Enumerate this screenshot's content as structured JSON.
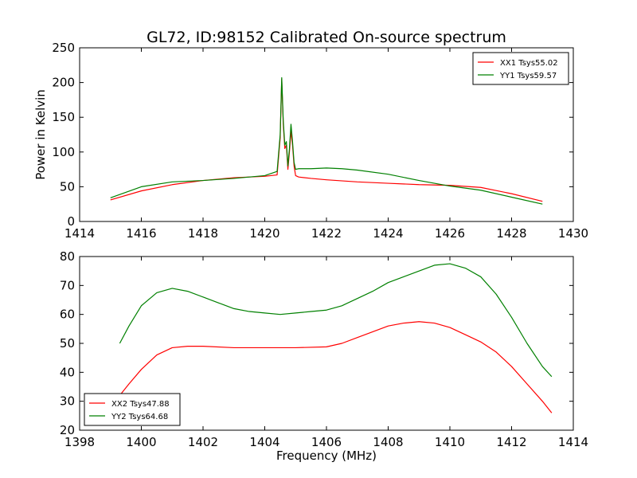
{
  "figure": {
    "title": "GL72, ID:98152 Calibrated On-source spectrum"
  },
  "colors": {
    "xx": "#ff0000",
    "yy": "#008000"
  },
  "chart_data": [
    {
      "type": "line",
      "title": "GL72, ID:98152 Calibrated On-source spectrum",
      "xlabel": "",
      "ylabel": "Power in Kelvin",
      "xlim": [
        1414,
        1430
      ],
      "ylim": [
        0,
        250
      ],
      "xticks": [
        "1414",
        "1416",
        "1418",
        "1420",
        "1422",
        "1424",
        "1426",
        "1428",
        "1430"
      ],
      "yticks": [
        "0",
        "50",
        "100",
        "150",
        "200",
        "250"
      ],
      "legend": "top-right",
      "grid": false,
      "series": [
        {
          "name": "XX1 Tsys55.02",
          "color": "#ff0000",
          "x": [
            1415.0,
            1416.0,
            1417.0,
            1418.0,
            1419.0,
            1420.0,
            1420.4,
            1420.5,
            1420.55,
            1420.6,
            1420.65,
            1420.7,
            1420.75,
            1420.8,
            1420.85,
            1420.9,
            1420.95,
            1421.0,
            1421.1,
            1421.5,
            1422.0,
            1423.0,
            1424.0,
            1425.0,
            1426.0,
            1427.0,
            1428.0,
            1429.0
          ],
          "y": [
            31,
            44,
            53,
            59,
            63,
            65,
            67,
            120,
            205,
            140,
            105,
            110,
            75,
            100,
            130,
            110,
            80,
            66,
            64,
            62,
            60,
            57,
            55,
            53,
            52,
            49,
            40,
            29
          ]
        },
        {
          "name": "YY1 Tsys59.57",
          "color": "#008000",
          "x": [
            1415.0,
            1416.0,
            1417.0,
            1418.0,
            1419.0,
            1420.0,
            1420.4,
            1420.5,
            1420.55,
            1420.6,
            1420.65,
            1420.7,
            1420.75,
            1420.8,
            1420.85,
            1420.9,
            1420.95,
            1421.0,
            1421.1,
            1421.5,
            1422.0,
            1422.5,
            1423.0,
            1424.0,
            1425.0,
            1426.0,
            1427.0,
            1428.0,
            1429.0
          ],
          "y": [
            34,
            50,
            57,
            59,
            62,
            66,
            72,
            125,
            207,
            145,
            110,
            115,
            80,
            105,
            140,
            115,
            85,
            75,
            76,
            76,
            77,
            76,
            74,
            68,
            59,
            51,
            45,
            35,
            25
          ]
        }
      ]
    },
    {
      "type": "line",
      "title": "",
      "xlabel": "Frequency (MHz)",
      "ylabel": "",
      "xlim": [
        1398,
        1414
      ],
      "ylim": [
        20,
        80
      ],
      "xticks": [
        "1398",
        "1400",
        "1402",
        "1404",
        "1406",
        "1408",
        "1410",
        "1412",
        "1414"
      ],
      "yticks": [
        "20",
        "30",
        "40",
        "50",
        "60",
        "70",
        "80"
      ],
      "legend": "bottom-left",
      "grid": false,
      "series": [
        {
          "name": "XX2 Tsys47.88",
          "color": "#ff0000",
          "x": [
            1399.3,
            1399.6,
            1400.0,
            1400.5,
            1401.0,
            1401.5,
            1402.0,
            1403.0,
            1404.0,
            1405.0,
            1406.0,
            1406.5,
            1407.0,
            1407.5,
            1408.0,
            1408.5,
            1409.0,
            1409.5,
            1410.0,
            1410.5,
            1411.0,
            1411.5,
            1412.0,
            1412.5,
            1413.0,
            1413.3
          ],
          "y": [
            32,
            36,
            41,
            46,
            48.5,
            49,
            49,
            48.5,
            48.5,
            48.5,
            48.8,
            50,
            52,
            54,
            56,
            57,
            57.5,
            57,
            55.5,
            53,
            50.5,
            47,
            42,
            36,
            30,
            26
          ]
        },
        {
          "name": "YY2 Tsys64.68",
          "color": "#008000",
          "x": [
            1399.3,
            1399.6,
            1400.0,
            1400.5,
            1401.0,
            1401.5,
            1402.0,
            1402.5,
            1403.0,
            1403.5,
            1404.0,
            1404.5,
            1405.0,
            1405.5,
            1406.0,
            1406.5,
            1407.0,
            1407.5,
            1408.0,
            1408.5,
            1409.0,
            1409.5,
            1410.0,
            1410.5,
            1411.0,
            1411.5,
            1412.0,
            1412.5,
            1413.0,
            1413.3
          ],
          "y": [
            50,
            56,
            63,
            67.5,
            69,
            68,
            66,
            64,
            62,
            61,
            60.5,
            60,
            60.5,
            61,
            61.5,
            63,
            65.5,
            68,
            71,
            73,
            75,
            77,
            77.5,
            76,
            73,
            67,
            59,
            50,
            42,
            38.5
          ]
        }
      ]
    }
  ]
}
